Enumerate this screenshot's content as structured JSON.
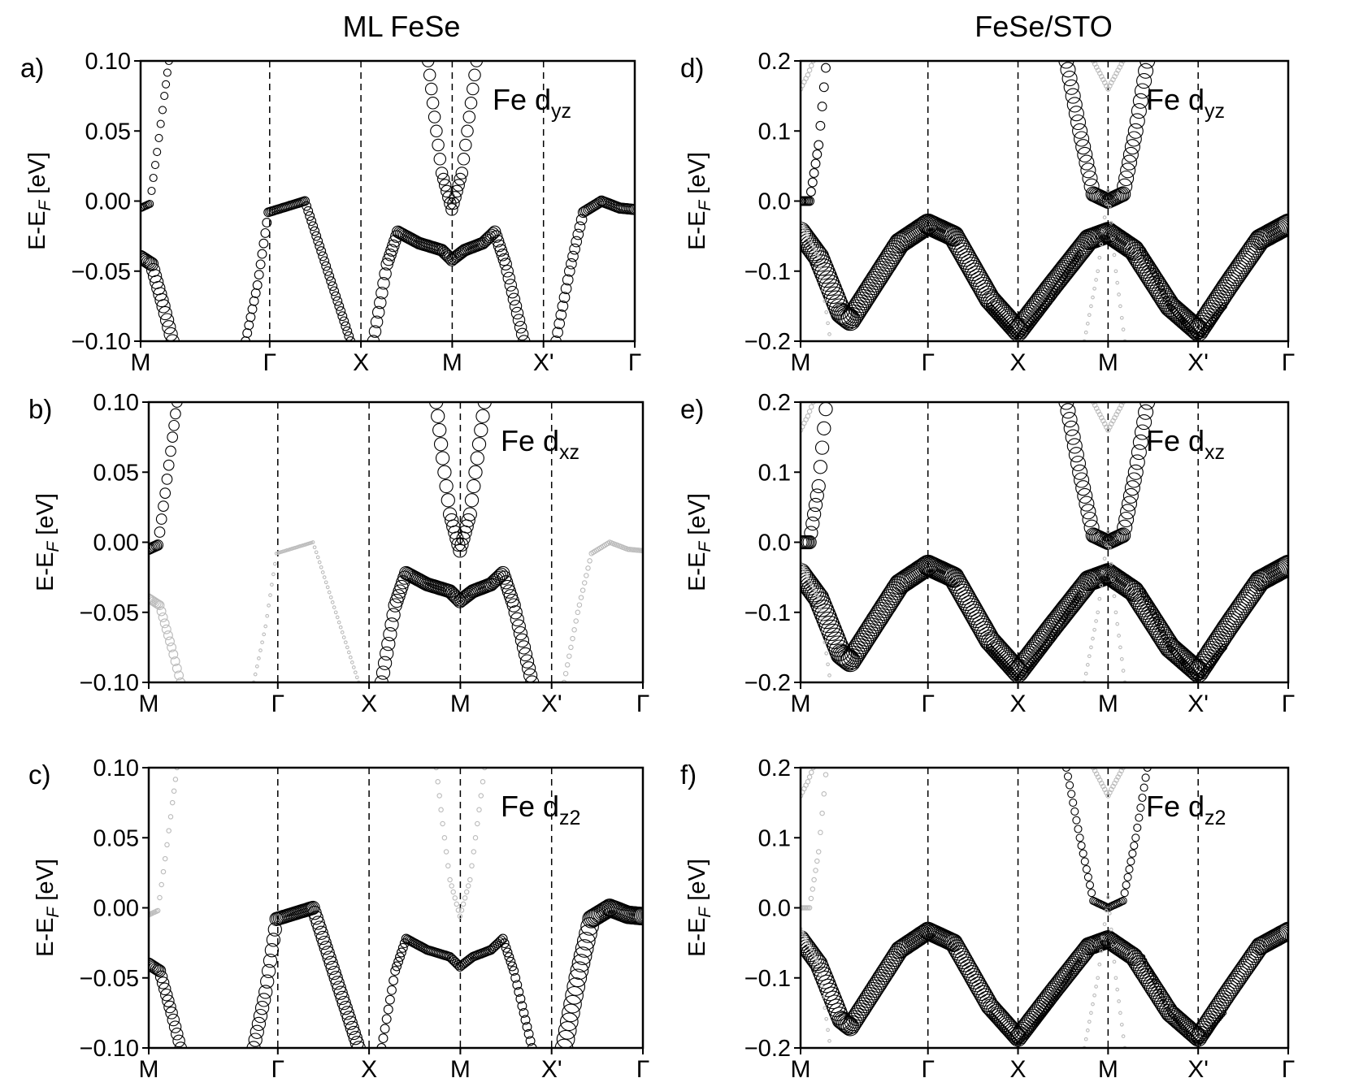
{
  "figure": {
    "column_titles": [
      "ML FeSe",
      "FeSe/STO"
    ]
  },
  "chart_data": [
    {
      "type": "scatter",
      "panel_label": "a)",
      "title": "ML FeSe",
      "orbital": {
        "prefix": "Fe d",
        "sub": "yz"
      },
      "ylabel": "E-E_F [eV]",
      "ylim": [
        -0.1,
        0.1
      ],
      "yticks": [
        "0.10",
        "0.05",
        "0.00",
        "−0.05",
        "−0.10"
      ],
      "yticks_values": [
        0.1,
        0.05,
        0.0,
        -0.05,
        -0.1
      ],
      "xticks": [
        "M",
        "Γ",
        "X",
        "M",
        "X'",
        "Γ"
      ],
      "xticks_pos": [
        0,
        1.414,
        2.414,
        3.414,
        4.414,
        5.414
      ],
      "vlines": [
        1.414,
        2.414,
        3.414,
        4.414
      ]
    },
    {
      "type": "scatter",
      "panel_label": "b)",
      "title": "ML FeSe",
      "orbital": {
        "prefix": "Fe d",
        "sub": "xz"
      },
      "ylabel": "E-E_F [eV]",
      "ylim": [
        -0.1,
        0.1
      ],
      "yticks": [
        "0.10",
        "0.05",
        "0.00",
        "−0.05",
        "−0.10"
      ],
      "yticks_values": [
        0.1,
        0.05,
        0.0,
        -0.05,
        -0.1
      ],
      "xticks": [
        "M",
        "Γ",
        "X",
        "M",
        "X'",
        "Γ"
      ],
      "xticks_pos": [
        0,
        1.414,
        2.414,
        3.414,
        4.414,
        5.414
      ],
      "vlines": [
        1.414,
        2.414,
        3.414,
        4.414
      ]
    },
    {
      "type": "scatter",
      "panel_label": "c)",
      "title": "ML FeSe",
      "orbital": {
        "prefix": "Fe d",
        "sub": "z2"
      },
      "ylabel": "E-E_F [eV]",
      "ylim": [
        -0.1,
        0.1
      ],
      "yticks": [
        "0.10",
        "0.05",
        "0.00",
        "−0.05",
        "−0.10"
      ],
      "yticks_values": [
        0.1,
        0.05,
        0.0,
        -0.05,
        -0.1
      ],
      "xticks": [
        "M",
        "Γ",
        "X",
        "M",
        "X'",
        "Γ"
      ],
      "xticks_pos": [
        0,
        1.414,
        2.414,
        3.414,
        4.414,
        5.414
      ],
      "vlines": [
        1.414,
        2.414,
        3.414,
        4.414
      ]
    },
    {
      "type": "scatter",
      "panel_label": "d)",
      "title": "FeSe/STO",
      "orbital": {
        "prefix": "Fe d",
        "sub": "yz"
      },
      "ylabel": "E-E_F [eV]",
      "ylim": [
        -0.2,
        0.2
      ],
      "yticks": [
        "0.2",
        "0.1",
        "0.0",
        "−0.1",
        "−0.2"
      ],
      "yticks_values": [
        0.2,
        0.1,
        0.0,
        -0.1,
        -0.2
      ],
      "xticks": [
        "M",
        "Γ",
        "X",
        "M",
        "X'",
        "Γ"
      ],
      "xticks_pos": [
        0,
        1.414,
        2.414,
        3.414,
        4.414,
        5.414
      ],
      "vlines": [
        1.414,
        2.414,
        3.414,
        4.414
      ]
    },
    {
      "type": "scatter",
      "panel_label": "e)",
      "title": "FeSe/STO",
      "orbital": {
        "prefix": "Fe d",
        "sub": "xz"
      },
      "ylabel": "E-E_F [eV]",
      "ylim": [
        -0.2,
        0.2
      ],
      "yticks": [
        "0.2",
        "0.1",
        "0.0",
        "−0.1",
        "−0.2"
      ],
      "yticks_values": [
        0.2,
        0.1,
        0.0,
        -0.1,
        -0.2
      ],
      "xticks": [
        "M",
        "Γ",
        "X",
        "M",
        "X'",
        "Γ"
      ],
      "xticks_pos": [
        0,
        1.414,
        2.414,
        3.414,
        4.414,
        5.414
      ],
      "vlines": [
        1.414,
        2.414,
        3.414,
        4.414
      ]
    },
    {
      "type": "scatter",
      "panel_label": "f)",
      "title": "FeSe/STO",
      "orbital": {
        "prefix": "Fe d",
        "sub": "z2"
      },
      "ylabel": "E-E_F [eV]",
      "ylim": [
        -0.2,
        0.2
      ],
      "yticks": [
        "0.2",
        "0.1",
        "0.0",
        "−0.1",
        "−0.2"
      ],
      "yticks_values": [
        0.2,
        0.1,
        0.0,
        -0.1,
        -0.2
      ],
      "xticks": [
        "M",
        "Γ",
        "X",
        "M",
        "X'",
        "Γ"
      ],
      "xticks_pos": [
        0,
        1.414,
        2.414,
        3.414,
        4.414,
        5.414
      ],
      "vlines": [
        1.414,
        2.414,
        3.414,
        4.414
      ]
    }
  ]
}
